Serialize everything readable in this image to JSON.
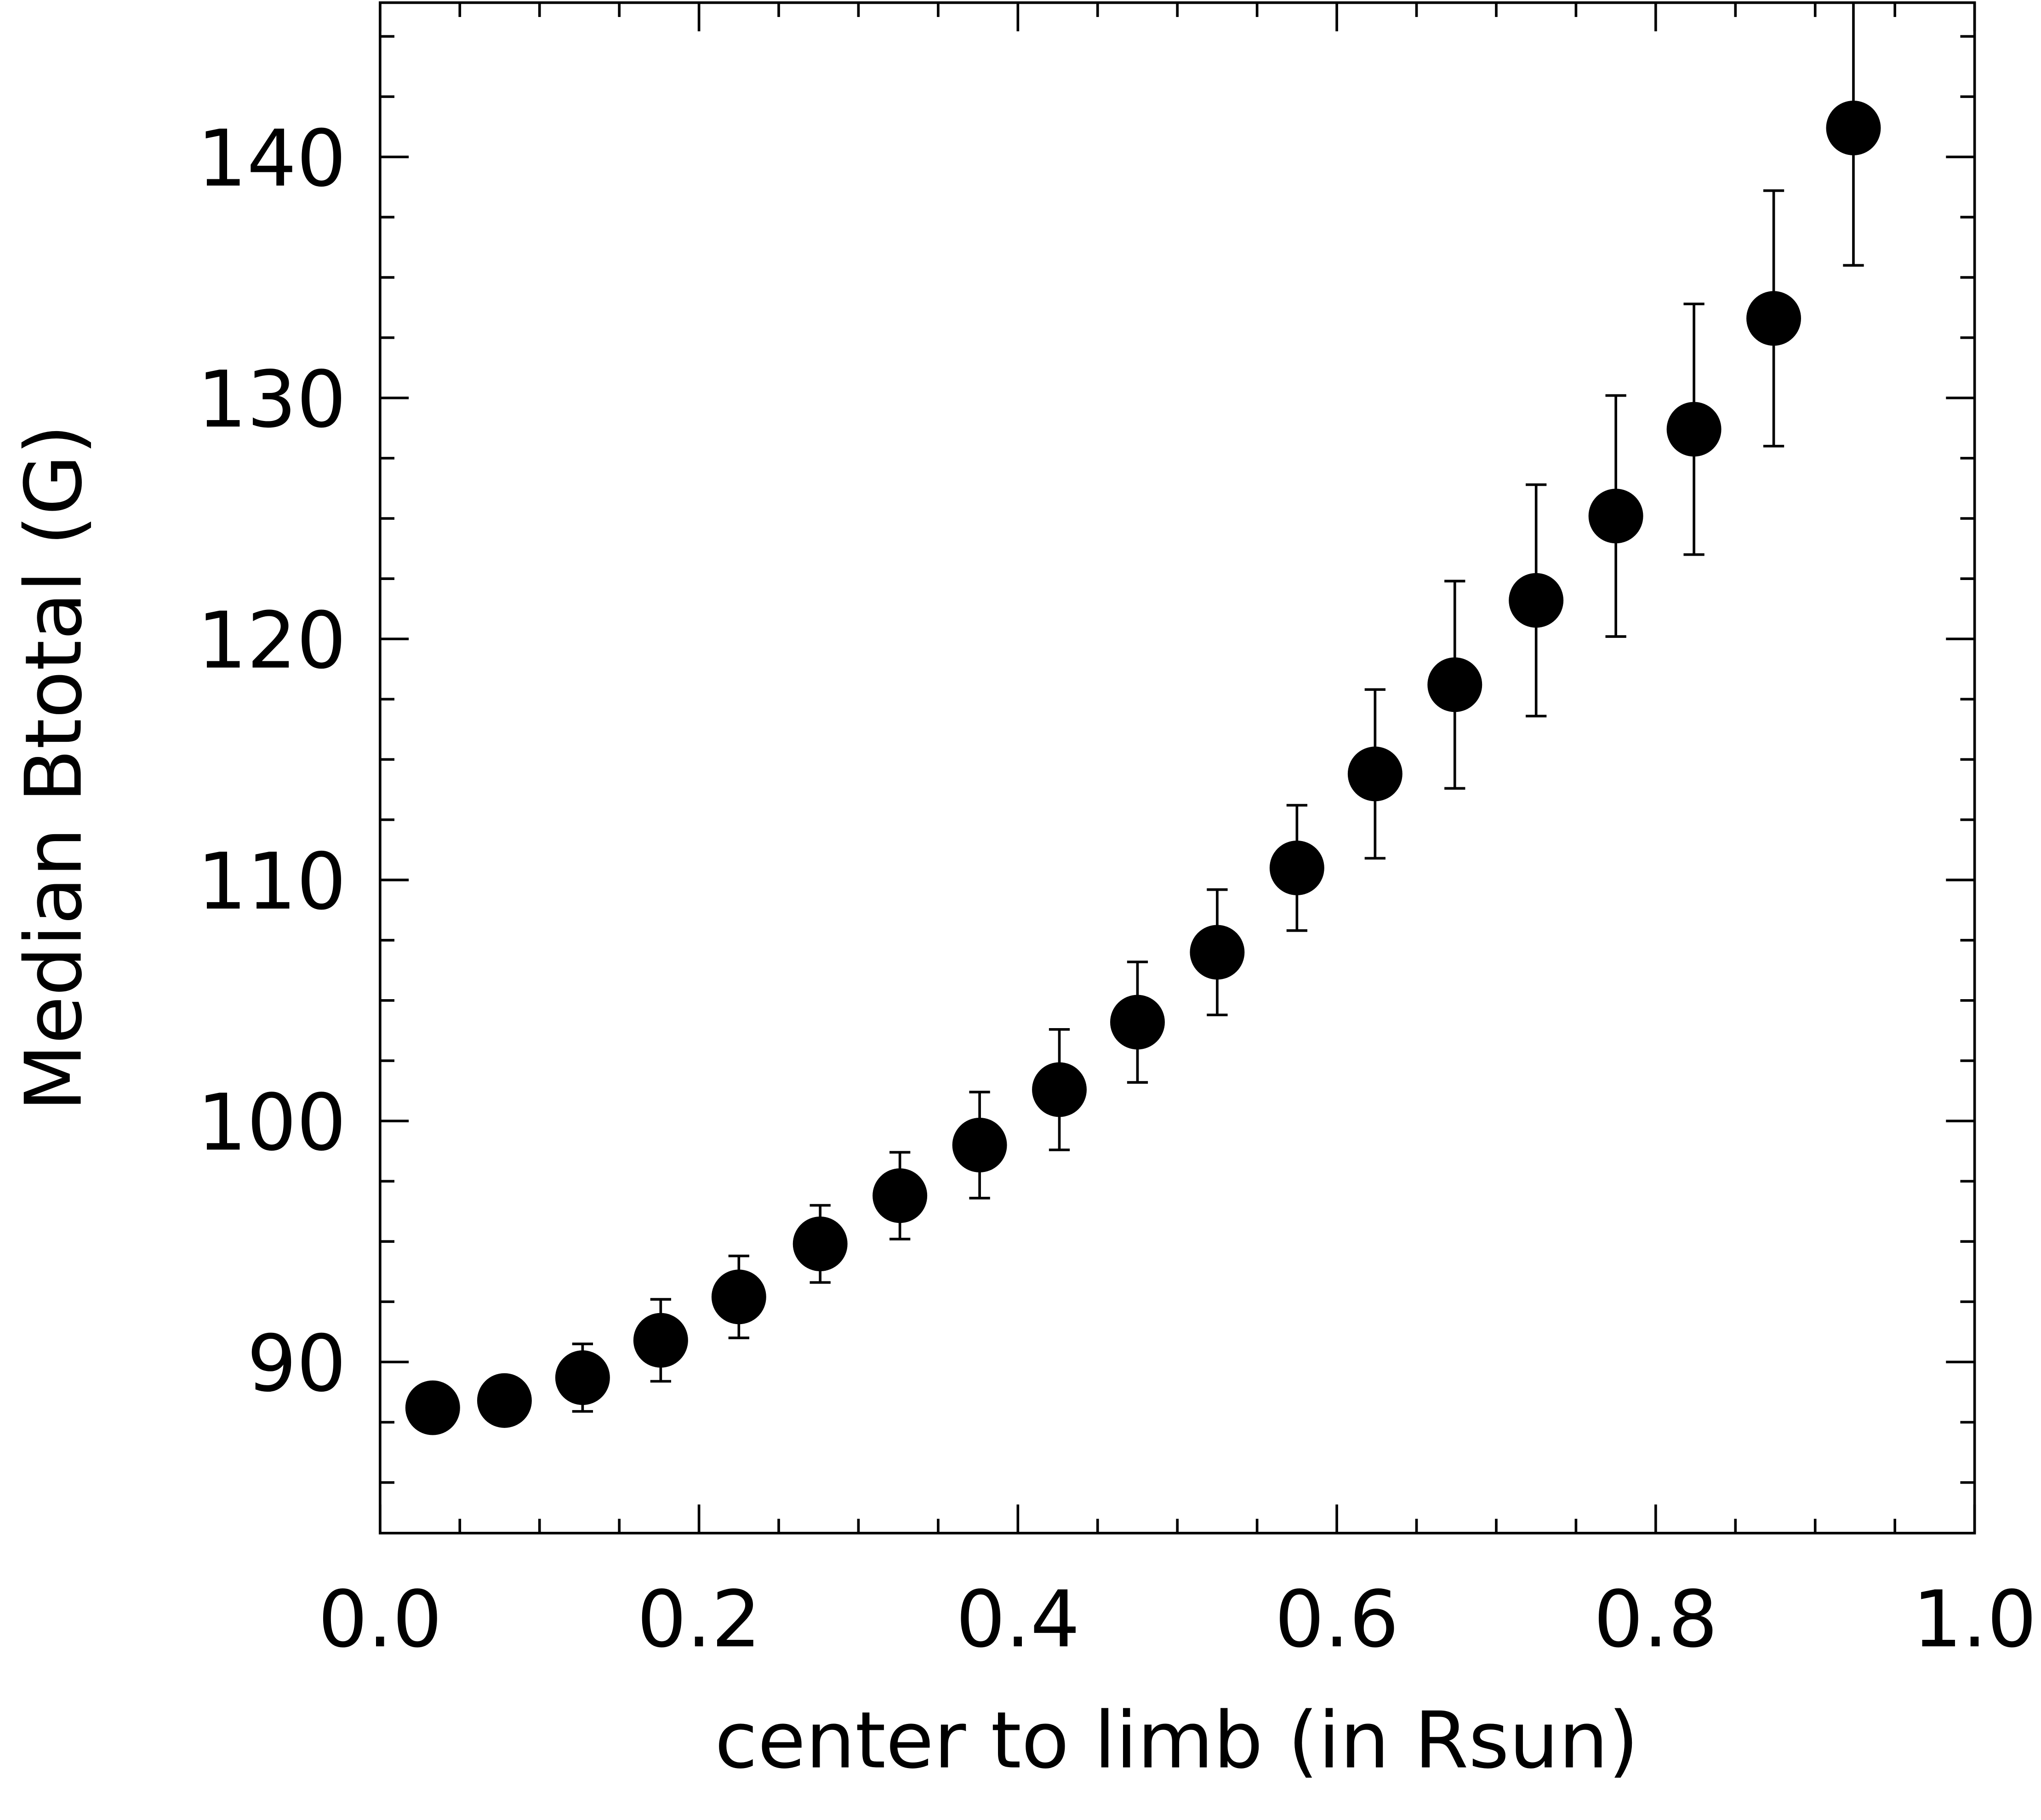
{
  "chart_data": {
    "type": "scatter",
    "xlabel": "center to limb (in Rsun)",
    "ylabel": "Median Btotal (G)",
    "x": [
      0.033,
      0.078,
      0.127,
      0.176,
      0.225,
      0.276,
      0.326,
      0.376,
      0.426,
      0.475,
      0.525,
      0.575,
      0.624,
      0.674,
      0.725,
      0.775,
      0.824,
      0.874,
      0.924
    ],
    "values": [
      88.1,
      88.4,
      89.35,
      90.9,
      92.7,
      94.9,
      96.9,
      99.0,
      101.3,
      104.1,
      107.0,
      110.5,
      114.4,
      118.1,
      121.6,
      125.1,
      128.7,
      133.3,
      141.2
    ],
    "errors": [
      0.6,
      0.8,
      1.4,
      1.7,
      1.7,
      1.6,
      1.8,
      2.2,
      2.5,
      2.5,
      2.6,
      2.6,
      3.5,
      4.3,
      4.8,
      5.0,
      5.2,
      5.3,
      5.7
    ],
    "color": "#000000",
    "xlim": [
      0,
      1
    ],
    "ylim": [
      82.9,
      146.4
    ],
    "xticks": [
      {
        "value": 0,
        "label": "0.0"
      },
      0.2,
      0.4,
      0.6,
      0.8,
      {
        "value": 1,
        "label": "1.0"
      }
    ],
    "yticks": [
      90,
      100,
      110,
      120,
      130,
      140
    ]
  }
}
